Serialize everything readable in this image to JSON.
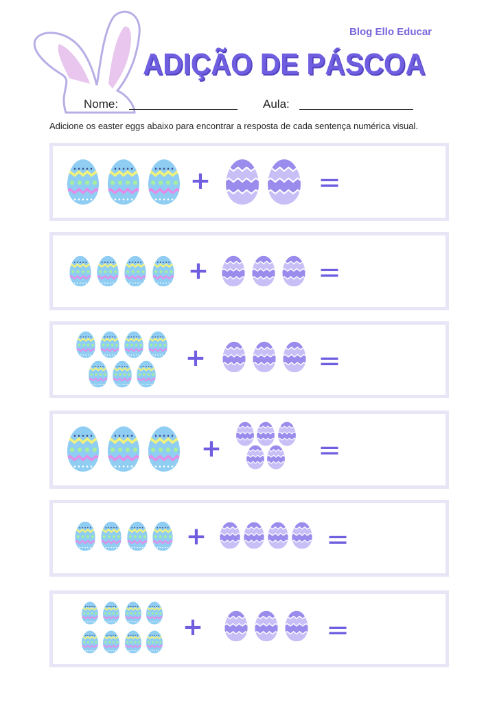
{
  "brand": "Blog Ello Educar",
  "title": "ADIÇÃO DE PÁSCOA",
  "name_label": "Nome:",
  "class_label": "Aula:",
  "instructions": "Adicione os easter eggs abaixo para encontrar a resposta de cada sentença numérica visual.",
  "plus_symbol": "+",
  "equals_symbol": "=",
  "colors": {
    "accent": "#6f5fe0",
    "box_border": "#e8e5f6",
    "blue_egg": "#8fcdf2",
    "purple_egg": "#a99bef"
  },
  "problems": [
    {
      "blue_eggs": 3,
      "purple_eggs": 2
    },
    {
      "blue_eggs": 4,
      "purple_eggs": 3
    },
    {
      "blue_eggs": 7,
      "purple_eggs": 3
    },
    {
      "blue_eggs": 3,
      "purple_eggs": 5
    },
    {
      "blue_eggs": 4,
      "purple_eggs": 4
    },
    {
      "blue_eggs": 8,
      "purple_eggs": 3
    }
  ]
}
